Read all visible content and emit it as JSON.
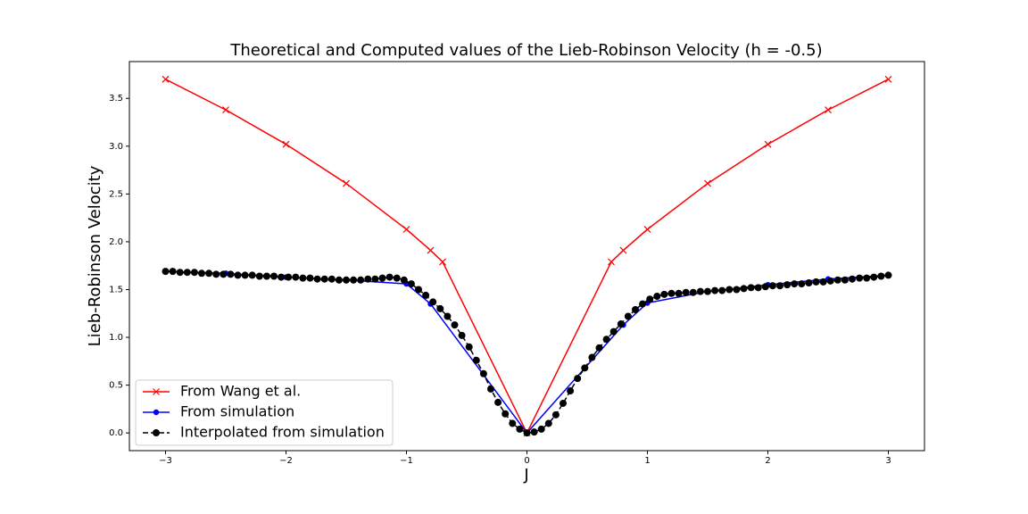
{
  "chart_data": {
    "type": "line",
    "title": "Theoretical and Computed values of the Lieb-Robinson Velocity (h = -0.5)",
    "x_label": "J",
    "y_label": "Lieb-Robinson Velocity",
    "xlim": [
      -3.3,
      3.3
    ],
    "ylim": [
      -0.185,
      3.885
    ],
    "xticks": [
      {
        "value": -3,
        "label": "−3"
      },
      {
        "value": -2,
        "label": "−2"
      },
      {
        "value": -1,
        "label": "−1"
      },
      0,
      1,
      2,
      3
    ],
    "yticks": [
      {
        "value": 0,
        "label": "0.0"
      },
      0.5,
      {
        "value": 1,
        "label": "1.0"
      },
      1.5,
      {
        "value": 2,
        "label": "2.0"
      },
      2.5,
      {
        "value": 3,
        "label": "3.0"
      },
      3.5
    ],
    "legend_position": "lower left",
    "series": [
      {
        "name": "From Wang et al.",
        "color": "#ff0000",
        "marker": "x",
        "linestyle": "solid",
        "x": [
          -3,
          -2.5,
          -2,
          -1.5,
          -1,
          -0.8,
          -0.7,
          0,
          0.7,
          0.8,
          1,
          1.5,
          2,
          2.5,
          3
        ],
        "values": [
          3.7,
          3.38,
          3.02,
          2.61,
          2.13,
          1.91,
          1.79,
          0,
          1.79,
          1.91,
          2.13,
          2.61,
          3.02,
          3.38,
          3.7
        ]
      },
      {
        "name": "From simulation",
        "color": "#0000ff",
        "marker": "circle-small",
        "linestyle": "solid",
        "x": [
          -3,
          -2.5,
          -2,
          -1.5,
          -1,
          -0.8,
          0,
          0.8,
          1,
          1.5,
          2,
          2.5,
          3
        ],
        "values": [
          1.69,
          1.67,
          1.63,
          1.6,
          1.56,
          1.35,
          0,
          1.13,
          1.36,
          1.48,
          1.55,
          1.61,
          1.65
        ]
      },
      {
        "name": "Interpolated from simulation",
        "color": "#000000",
        "marker": "circle",
        "linestyle": "dashed",
        "x": [
          -3,
          -2.94,
          -2.88,
          -2.82,
          -2.76,
          -2.7,
          -2.64,
          -2.58,
          -2.52,
          -2.46,
          -2.4,
          -2.34,
          -2.28,
          -2.22,
          -2.16,
          -2.1,
          -2.04,
          -1.98,
          -1.92,
          -1.86,
          -1.8,
          -1.74,
          -1.68,
          -1.62,
          -1.56,
          -1.5,
          -1.44,
          -1.38,
          -1.32,
          -1.26,
          -1.2,
          -1.14,
          -1.08,
          -1.02,
          -0.96,
          -0.9,
          -0.84,
          -0.78,
          -0.72,
          -0.66,
          -0.6,
          -0.54,
          -0.48,
          -0.42,
          -0.36,
          -0.3,
          -0.24,
          -0.18,
          -0.12,
          -0.06,
          0,
          0.06,
          0.12,
          0.18,
          0.24,
          0.3,
          0.36,
          0.42,
          0.48,
          0.54,
          0.6,
          0.66,
          0.72,
          0.78,
          0.84,
          0.9,
          0.96,
          1.02,
          1.08,
          1.14,
          1.2,
          1.26,
          1.32,
          1.38,
          1.44,
          1.5,
          1.56,
          1.62,
          1.68,
          1.74,
          1.8,
          1.86,
          1.92,
          1.98,
          2.04,
          2.1,
          2.16,
          2.22,
          2.28,
          2.34,
          2.4,
          2.46,
          2.52,
          2.58,
          2.64,
          2.7,
          2.76,
          2.82,
          2.88,
          2.94,
          3
        ],
        "values": [
          1.69,
          1.69,
          1.68,
          1.68,
          1.68,
          1.67,
          1.67,
          1.66,
          1.66,
          1.66,
          1.65,
          1.65,
          1.65,
          1.64,
          1.64,
          1.64,
          1.63,
          1.63,
          1.63,
          1.62,
          1.62,
          1.61,
          1.61,
          1.61,
          1.6,
          1.6,
          1.6,
          1.6,
          1.61,
          1.61,
          1.62,
          1.63,
          1.62,
          1.6,
          1.56,
          1.5,
          1.44,
          1.37,
          1.3,
          1.22,
          1.13,
          1.02,
          0.9,
          0.76,
          0.62,
          0.46,
          0.32,
          0.2,
          0.1,
          0.04,
          0.0,
          0.01,
          0.04,
          0.1,
          0.19,
          0.31,
          0.44,
          0.57,
          0.68,
          0.79,
          0.89,
          0.98,
          1.06,
          1.14,
          1.22,
          1.29,
          1.35,
          1.4,
          1.43,
          1.45,
          1.46,
          1.46,
          1.47,
          1.47,
          1.48,
          1.48,
          1.49,
          1.49,
          1.5,
          1.5,
          1.51,
          1.52,
          1.52,
          1.53,
          1.54,
          1.54,
          1.55,
          1.56,
          1.56,
          1.57,
          1.58,
          1.58,
          1.59,
          1.6,
          1.6,
          1.61,
          1.62,
          1.62,
          1.63,
          1.64,
          1.65
        ]
      }
    ]
  }
}
